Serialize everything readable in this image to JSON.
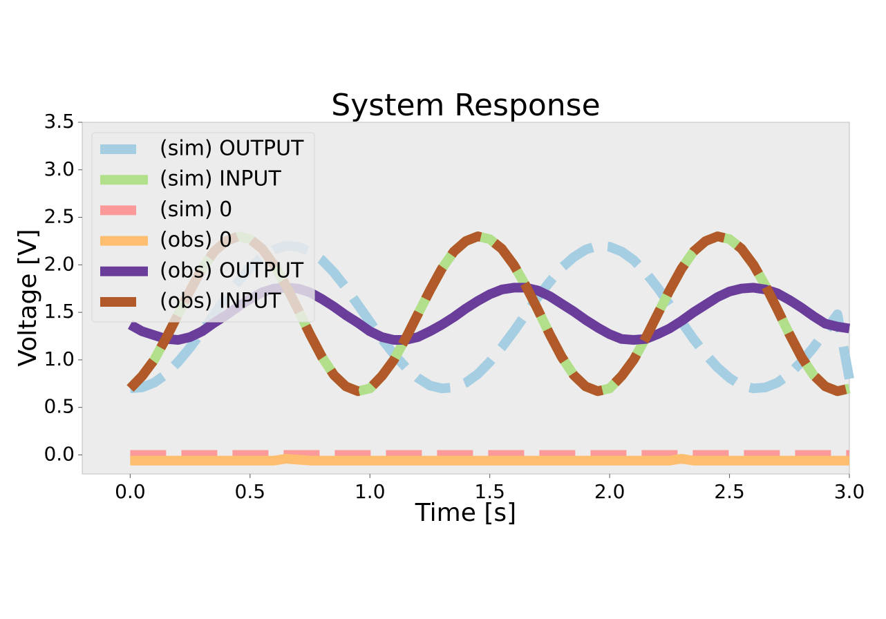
{
  "chart_data": {
    "type": "line",
    "title": "System Response",
    "xlabel": "Time [s]",
    "ylabel": "Voltage [V]",
    "xlim": [
      -0.2,
      3.0
    ],
    "ylim": [
      -0.2,
      3.5
    ],
    "xticks": [
      "0.0",
      "0.5",
      "1.0",
      "1.5",
      "2.0",
      "2.5",
      "3.0"
    ],
    "yticks": [
      "0.0",
      "0.5",
      "1.0",
      "1.5",
      "2.0",
      "2.5",
      "3.0",
      "3.5"
    ],
    "grid": false,
    "legend_position": "top-left",
    "x": [
      0.0,
      0.05,
      0.1,
      0.15,
      0.2,
      0.25,
      0.3,
      0.35,
      0.4,
      0.45,
      0.5,
      0.55,
      0.6,
      0.65,
      0.7,
      0.75,
      0.8,
      0.85,
      0.9,
      0.95,
      1.0,
      1.05,
      1.1,
      1.15,
      1.2,
      1.25,
      1.3,
      1.35,
      1.4,
      1.45,
      1.5,
      1.55,
      1.6,
      1.65,
      1.7,
      1.75,
      1.8,
      1.85,
      1.9,
      1.95,
      2.0,
      2.05,
      2.1,
      2.15,
      2.2,
      2.25,
      2.3,
      2.35,
      2.4,
      2.45,
      2.5,
      2.55,
      2.6,
      2.65,
      2.7,
      2.75,
      2.8,
      2.85,
      2.9,
      2.95,
      3.0
    ],
    "series": [
      {
        "name": "(sim) OUTPUT",
        "color": "#a6cee3",
        "style": "dashed",
        "values": [
          0.7,
          0.71,
          0.76,
          0.85,
          0.98,
          1.13,
          1.3,
          1.48,
          1.66,
          1.82,
          1.97,
          2.08,
          2.16,
          2.2,
          2.19,
          2.14,
          2.05,
          1.92,
          1.76,
          1.58,
          1.4,
          1.22,
          1.06,
          0.92,
          0.81,
          0.73,
          0.7,
          0.71,
          0.76,
          0.85,
          0.98,
          1.13,
          1.3,
          1.48,
          1.66,
          1.82,
          1.97,
          2.08,
          2.16,
          2.2,
          2.19,
          2.14,
          2.05,
          1.92,
          1.76,
          1.58,
          1.4,
          1.22,
          1.06,
          0.92,
          0.81,
          0.73,
          0.7,
          0.71,
          0.76,
          0.85,
          0.98,
          1.13,
          1.3,
          1.48,
          0.8
        ]
      },
      {
        "name": "(sim) INPUT",
        "color": "#b2df8a",
        "style": "solid",
        "values": [
          0.7,
          0.83,
          1.0,
          1.23,
          1.48,
          1.73,
          1.96,
          2.14,
          2.25,
          2.3,
          2.27,
          2.17,
          2.0,
          1.78,
          1.53,
          1.27,
          1.03,
          0.84,
          0.72,
          0.67,
          0.7,
          0.83,
          1.0,
          1.23,
          1.48,
          1.73,
          1.96,
          2.14,
          2.25,
          2.3,
          2.27,
          2.17,
          2.0,
          1.78,
          1.53,
          1.27,
          1.03,
          0.84,
          0.72,
          0.67,
          0.7,
          0.83,
          1.0,
          1.23,
          1.48,
          1.73,
          1.96,
          2.14,
          2.25,
          2.3,
          2.27,
          2.17,
          2.0,
          1.78,
          1.53,
          1.27,
          1.03,
          0.84,
          0.72,
          0.67,
          0.7
        ]
      },
      {
        "name": "(sim) 0",
        "color": "#fb9a99",
        "style": "dashed",
        "values": [
          0,
          0,
          0,
          0,
          0,
          0,
          0,
          0,
          0,
          0,
          0,
          0,
          0,
          0,
          0,
          0,
          0,
          0,
          0,
          0,
          0,
          0,
          0,
          0,
          0,
          0,
          0,
          0,
          0,
          0,
          0,
          0,
          0,
          0,
          0,
          0,
          0,
          0,
          0,
          0,
          0,
          0,
          0,
          0,
          0,
          0,
          0,
          0,
          0,
          0,
          0,
          0,
          0,
          0,
          0,
          0,
          0,
          0,
          0,
          0,
          0
        ]
      },
      {
        "name": "(obs) 0",
        "color": "#fdbf6f",
        "style": "solid",
        "values": [
          -0.06,
          -0.06,
          -0.06,
          -0.06,
          -0.06,
          -0.06,
          -0.06,
          -0.06,
          -0.06,
          -0.06,
          -0.06,
          -0.06,
          -0.06,
          -0.04,
          -0.05,
          -0.06,
          -0.06,
          -0.06,
          -0.06,
          -0.06,
          -0.06,
          -0.06,
          -0.06,
          -0.06,
          -0.06,
          -0.06,
          -0.06,
          -0.06,
          -0.06,
          -0.06,
          -0.06,
          -0.06,
          -0.06,
          -0.06,
          -0.06,
          -0.06,
          -0.06,
          -0.06,
          -0.06,
          -0.06,
          -0.06,
          -0.06,
          -0.06,
          -0.06,
          -0.06,
          -0.06,
          -0.04,
          -0.06,
          -0.06,
          -0.06,
          -0.06,
          -0.06,
          -0.06,
          -0.06,
          -0.06,
          -0.06,
          -0.06,
          -0.06,
          -0.06,
          -0.06,
          -0.06
        ]
      },
      {
        "name": "(obs) OUTPUT",
        "color": "#6a3d9a",
        "style": "solid",
        "values": [
          1.37,
          1.3,
          1.26,
          1.22,
          1.21,
          1.24,
          1.3,
          1.39,
          1.47,
          1.56,
          1.64,
          1.71,
          1.75,
          1.76,
          1.75,
          1.71,
          1.64,
          1.56,
          1.47,
          1.39,
          1.3,
          1.24,
          1.21,
          1.21,
          1.24,
          1.3,
          1.37,
          1.45,
          1.54,
          1.62,
          1.69,
          1.74,
          1.76,
          1.76,
          1.73,
          1.67,
          1.59,
          1.51,
          1.42,
          1.34,
          1.27,
          1.22,
          1.21,
          1.22,
          1.27,
          1.33,
          1.41,
          1.5,
          1.58,
          1.66,
          1.72,
          1.75,
          1.76,
          1.74,
          1.7,
          1.63,
          1.55,
          1.46,
          1.38,
          1.35,
          1.33
        ]
      },
      {
        "name": "(obs) INPUT",
        "color": "#b15928",
        "style": "dashed",
        "values": [
          0.7,
          0.83,
          1.0,
          1.23,
          1.48,
          1.73,
          1.96,
          2.14,
          2.25,
          2.3,
          2.27,
          2.17,
          2.0,
          1.78,
          1.53,
          1.27,
          1.03,
          0.84,
          0.72,
          0.67,
          0.7,
          0.83,
          1.0,
          1.23,
          1.48,
          1.73,
          1.96,
          2.14,
          2.25,
          2.3,
          2.27,
          2.17,
          2.0,
          1.78,
          1.53,
          1.27,
          1.03,
          0.84,
          0.72,
          0.67,
          0.7,
          0.83,
          1.0,
          1.23,
          1.48,
          1.73,
          1.96,
          2.14,
          2.25,
          2.3,
          2.27,
          2.17,
          2.0,
          1.78,
          1.53,
          1.27,
          1.03,
          0.84,
          0.72,
          0.67,
          0.7
        ]
      }
    ]
  },
  "colors": {
    "axes_background": "#ececec",
    "axes_border": "#bfbfbf"
  }
}
